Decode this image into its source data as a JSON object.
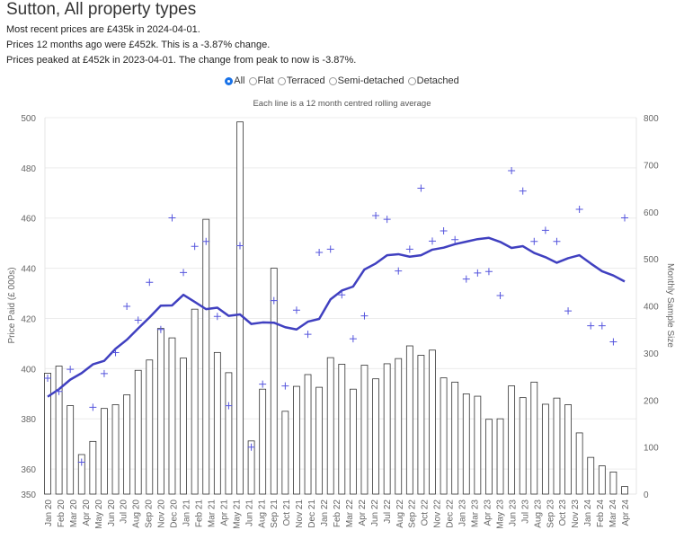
{
  "header": {
    "title": "Sutton, All property types",
    "lines": [
      "Most recent prices are £435k in 2024-04-01.",
      "Prices 12 months ago were £452k. This is a -3.87% change.",
      "Prices peaked at £452k in 2023-04-01. The change from peak to now is -3.87%."
    ]
  },
  "filters": {
    "selected": "All",
    "options": [
      "All",
      "Flat",
      "Terraced",
      "Semi-detached",
      "Detached"
    ]
  },
  "chart_data": {
    "type": "bar+line+scatter",
    "subtitle": "Each line is a 12 month centred rolling average",
    "ylabel": "Price Paid (£ 000s)",
    "y2label": "Monthly Sample Size",
    "ylim": [
      350,
      500
    ],
    "yticks": [
      350,
      360,
      380,
      400,
      420,
      440,
      460,
      480,
      500
    ],
    "y2lim": [
      0,
      800
    ],
    "y2ticks": [
      0,
      100,
      200,
      300,
      400,
      500,
      600,
      700,
      800
    ],
    "grid": true,
    "colors": {
      "line": "#4040c0",
      "marker": "#5555dd",
      "bar_edge": "#333333",
      "bar_fill": "#ffffff"
    },
    "xtick_labels": [
      "Jan 20",
      "Feb 20",
      "Mar 20",
      "Apr 20",
      "May 20",
      "Jun 20",
      "Jul 20",
      "Aug 20",
      "Sep 20",
      "Nov 20",
      "Dec 20",
      "Jan 21",
      "Feb 21",
      "Mar 21",
      "Apr 21",
      "May 21",
      "Jun 21",
      "Aug 21",
      "Sep 21",
      "Oct 21",
      "Nov 21",
      "Dec 21",
      "Jan 22",
      "Feb 22",
      "Mar 22",
      "Apr 22",
      "Jun 22",
      "Jul 22",
      "Aug 22",
      "Sep 22",
      "Oct 22",
      "Nov 22",
      "Dec 22",
      "Jan 23",
      "Mar 23",
      "Apr 23",
      "May 23",
      "Jun 23",
      "Jul 23",
      "Aug 23",
      "Sep 23",
      "Oct 23",
      "Nov 23",
      "Jan 24",
      "Feb 24",
      "Mar 24",
      "Apr 24"
    ],
    "sample_size": [
      257,
      272,
      188,
      84,
      112,
      182,
      190,
      211,
      263,
      285,
      352,
      332,
      289,
      393,
      584,
      301,
      258,
      791,
      113,
      223,
      480,
      176,
      229,
      254,
      227,
      290,
      276,
      223,
      274,
      245,
      277,
      288,
      315,
      295,
      306,
      247,
      238,
      213,
      208,
      159,
      160,
      230,
      205,
      238,
      191,
      204,
      190,
      130,
      78,
      60,
      47,
      16
    ],
    "monthly_price": [
      396.2,
      390.9,
      399.7,
      362.7,
      384.6,
      398,
      406.4,
      424.8,
      419.3,
      434.4,
      415.6,
      460.1,
      438.3,
      448.7,
      450.7,
      420.8,
      385.2,
      449,
      368.7,
      393.8,
      427.1,
      393.1,
      423.3,
      413.7,
      446.3,
      447.6,
      429.4,
      411.9,
      421,
      461,
      459.5,
      438.9,
      447.6,
      471.9,
      450.8,
      454.9,
      451.4,
      435.7,
      438.1,
      438.7,
      429.1,
      478.9,
      470.8,
      450.7,
      455.1,
      450.7,
      423,
      463.5,
      417.1,
      417.1,
      410.7,
      460.1
    ],
    "rolling_avg": [
      388.8,
      391.8,
      395.6,
      398.2,
      401.7,
      403.1,
      407.9,
      411.5,
      416,
      420.4,
      425.1,
      425.2,
      429.4,
      426.6,
      423.7,
      424.3,
      421,
      421.6,
      417.8,
      418.4,
      418.3,
      416.5,
      415.6,
      418.7,
      419.8,
      427.6,
      431.1,
      432.7,
      439.5,
      441.9,
      445.2,
      445.6,
      444.6,
      445.2,
      447.4,
      448.2,
      449.6,
      450.6,
      451.6,
      452.1,
      450.5,
      448.1,
      448.8,
      446.1,
      444.4,
      442.2,
      444,
      445.2,
      441.9,
      438.8,
      437.1,
      434.7
    ]
  }
}
